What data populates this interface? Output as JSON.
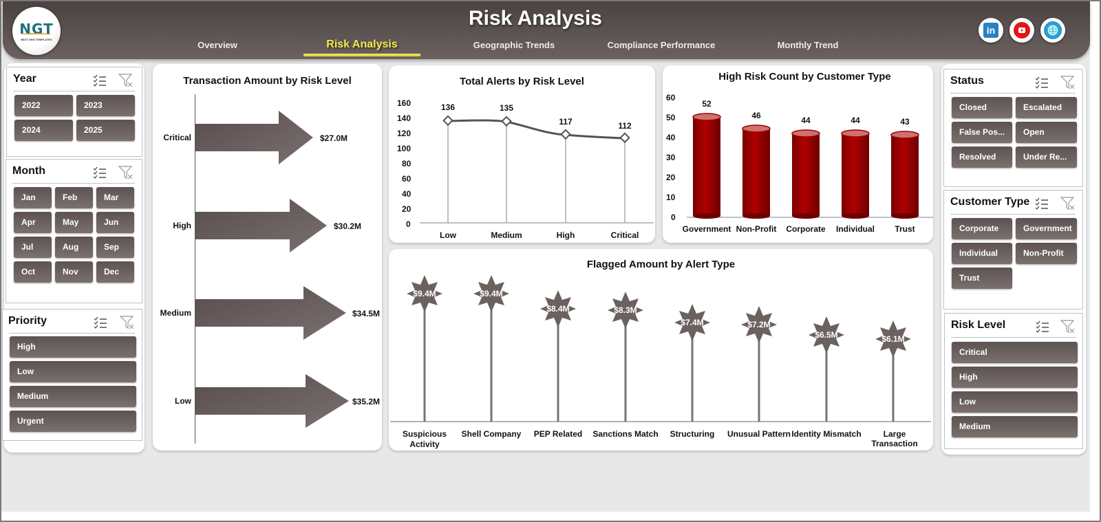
{
  "header": {
    "logo_text": "NGT",
    "logo_subtext": "NEXT GEN TEMPLATES",
    "title": "Risk Analysis",
    "nav": [
      {
        "label": "Overview",
        "active": false
      },
      {
        "label": "Risk Analysis",
        "active": true
      },
      {
        "label": "Geographic Trends",
        "active": false
      },
      {
        "label": "Compliance Performance",
        "active": false
      },
      {
        "label": "Monthly Trend",
        "active": false
      }
    ],
    "social": [
      {
        "icon": "linkedin-icon",
        "glyph": "in"
      },
      {
        "icon": "youtube-icon",
        "glyph": ""
      },
      {
        "icon": "globe-icon",
        "glyph": "🌐"
      }
    ]
  },
  "slicers": {
    "year": {
      "title": "Year",
      "items": [
        "2022",
        "2023",
        "2024",
        "2025"
      ]
    },
    "month": {
      "title": "Month",
      "items": [
        "Jan",
        "Feb",
        "Mar",
        "Apr",
        "May",
        "Jun",
        "Jul",
        "Aug",
        "Sep",
        "Oct",
        "Nov",
        "Dec"
      ]
    },
    "priority": {
      "title": "Priority",
      "items": [
        "High",
        "Low",
        "Medium",
        "Urgent"
      ]
    },
    "status": {
      "title": "Status",
      "items": [
        "Closed",
        "Escalated",
        "False Pos...",
        "Open",
        "Resolved",
        "Under Re..."
      ]
    },
    "customer_type": {
      "title": "Customer Type",
      "items": [
        "Corporate",
        "Government",
        "Individual",
        "Non-Profit",
        "Trust"
      ]
    },
    "risk_level": {
      "title": "Risk Level",
      "items": [
        "Critical",
        "High",
        "Low",
        "Medium"
      ]
    }
  },
  "colors": {
    "header_dark": "#4a4241",
    "button": "#6b6260",
    "active_nav": "#f4e94a",
    "bar_red": "#a00000",
    "arrow": "#625958"
  },
  "chart_data": [
    {
      "type": "bar",
      "orientation": "horizontal",
      "title": "Transaction Amount by Risk Level",
      "categories": [
        "Critical",
        "High",
        "Medium",
        "Low"
      ],
      "values": [
        27.0,
        30.2,
        34.5,
        35.2
      ],
      "labels": [
        "$27.0M",
        "$30.2M",
        "$34.5M",
        "$35.2M"
      ],
      "unit": "$M"
    },
    {
      "type": "line",
      "title": "Total Alerts by Risk Level",
      "categories": [
        "Low",
        "Medium",
        "High",
        "Critical"
      ],
      "values": [
        136,
        135,
        117,
        112
      ],
      "yticks": [
        "0",
        "20",
        "40",
        "60",
        "80",
        "100",
        "120",
        "140",
        "160"
      ],
      "ylim": [
        0,
        160
      ]
    },
    {
      "type": "bar",
      "title": "High Risk Count by Customer Type",
      "categories": [
        "Government",
        "Non-Profit",
        "Corporate",
        "Individual",
        "Trust"
      ],
      "values": [
        52,
        46,
        44,
        44,
        43
      ],
      "yticks": [
        "0",
        "10",
        "20",
        "30",
        "40",
        "50",
        "60"
      ],
      "ylim": [
        0,
        60
      ]
    },
    {
      "type": "bar",
      "style": "lollipop",
      "title": "Flagged Amount by Alert Type",
      "categories": [
        "Suspicious Activity",
        "Shell Company",
        "PEP Related",
        "Sanctions Match",
        "Structuring",
        "Unusual Pattern",
        "Identity Mismatch",
        "Large Transaction"
      ],
      "values": [
        9.4,
        9.4,
        8.4,
        8.3,
        7.4,
        7.2,
        6.5,
        6.1
      ],
      "labels": [
        "$9.4M",
        "$9.4M",
        "$8.4M",
        "$8.3M",
        "$7.4M",
        "$7.2M",
        "$6.5M",
        "$6.1M"
      ],
      "unit": "$M"
    }
  ]
}
